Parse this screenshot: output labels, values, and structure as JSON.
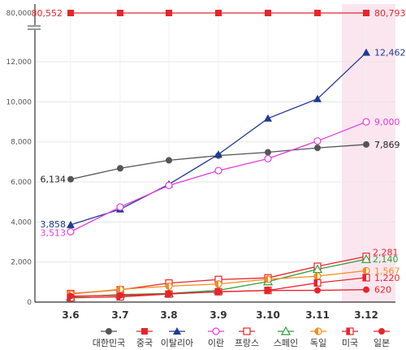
{
  "chart_data": {
    "type": "line",
    "categories": [
      "3.6",
      "3.7",
      "3.8",
      "3.9",
      "3.10",
      "3.11",
      "3.12"
    ],
    "y_ticks": [
      "0",
      "2,000",
      "4,000",
      "6,000",
      "8,000",
      "10,000",
      "12,000"
    ],
    "y_break_tick": "80,000",
    "ylim": [
      0,
      13300
    ],
    "grid": true,
    "legend_position": "bottom",
    "highlight_category": "3.12",
    "colors": {
      "highlight": "#fbe6ef",
      "axis": "#333333",
      "grid": "#e5e5e5"
    },
    "series": [
      {
        "name": "대한민국",
        "color": "#555555",
        "marker": "filled-circle",
        "values": [
          6134,
          6680,
          7080,
          7315,
          7480,
          7700,
          7869
        ],
        "labels": {
          "first": "6,134",
          "last": "7,869"
        }
      },
      {
        "name": "중국",
        "color": "#e8242c",
        "marker": "filled-square",
        "broken_axis": true,
        "values": [
          80552,
          80600,
          80650,
          80700,
          80740,
          80770,
          80793
        ],
        "labels": {
          "first": "80,552",
          "last": "80,793"
        }
      },
      {
        "name": "이탈리아",
        "color": "#1f3a93",
        "marker": "filled-triangle",
        "values": [
          3858,
          4636,
          5883,
          7375,
          9172,
          10149,
          12462
        ],
        "labels": {
          "first": "3,858",
          "last": "12,462"
        }
      },
      {
        "name": "이란",
        "color": "#e23ce0",
        "marker": "open-circle",
        "values": [
          3513,
          4747,
          5823,
          6566,
          7161,
          8042,
          9000
        ],
        "labels": {
          "first": "3,513",
          "last": "9,000"
        }
      },
      {
        "name": "프랑스",
        "color": "#e8242c",
        "marker": "open-square",
        "values": [
          423,
          613,
          949,
          1126,
          1209,
          1784,
          2281
        ],
        "labels": {
          "last": "2,281"
        }
      },
      {
        "name": "스페인",
        "color": "#2f9e3b",
        "marker": "open-triangle",
        "values": [
          257,
          374,
          430,
          589,
          1024,
          1639,
          2140
        ],
        "labels": {
          "last": "2,140"
        }
      },
      {
        "name": "독일",
        "color": "#f28c1c",
        "marker": "half-circle",
        "values": [
          400,
          639,
          795,
          902,
          1139,
          1296,
          1567
        ],
        "labels": {
          "last": "1,567"
        }
      },
      {
        "name": "미국",
        "color": "#e8242c",
        "marker": "half-square",
        "values": [
          213,
          261,
          402,
          518,
          583,
          959,
          1220
        ],
        "labels": {
          "last": "1,220"
        }
      },
      {
        "name": "일본",
        "color": "#e8242c",
        "marker": "filled-circle",
        "values": [
          300,
          331,
          412,
          514,
          581,
          586,
          620
        ],
        "labels": {
          "last": "620"
        }
      }
    ]
  }
}
